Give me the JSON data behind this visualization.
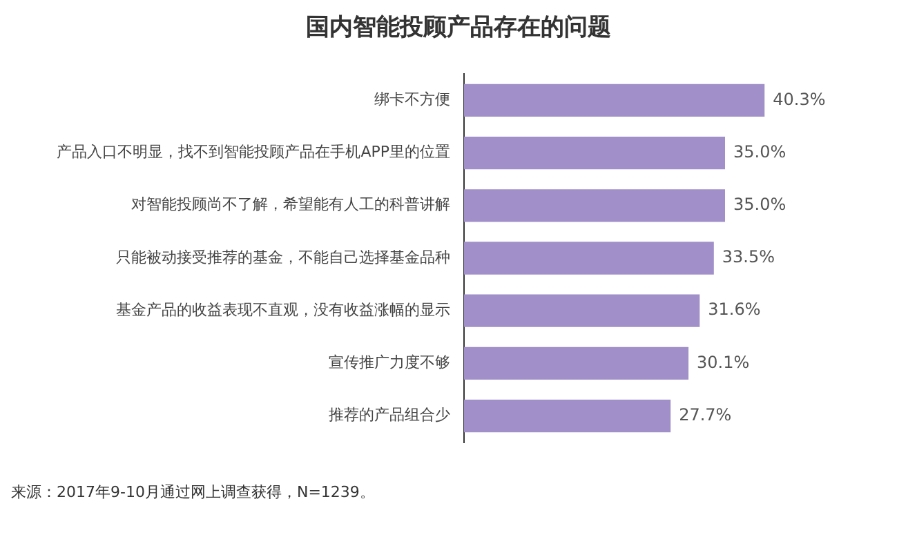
{
  "chart_data": {
    "type": "bar",
    "orientation": "horizontal",
    "title": "国内智能投顾产品存在的问题",
    "categories": [
      "绑卡不方便",
      "产品入口不明显，找不到智能投顾产品在手机APP里的位置",
      "对智能投顾尚不了解，希望能有人工的科普讲解",
      "只能被动接受推荐的基金，不能自己选择基金品种",
      "基金产品的收益表现不直观，没有收益涨幅的显示",
      "宣传推广力度不够",
      "推荐的产品组合少"
    ],
    "values": [
      40.3,
      35.0,
      35.0,
      33.5,
      31.6,
      30.1,
      27.7
    ],
    "value_labels": [
      "40.3%",
      "35.0%",
      "35.0%",
      "33.5%",
      "31.6%",
      "30.1%",
      "27.7%"
    ],
    "color": "#a08fc8",
    "grid": false,
    "legend": false,
    "tick_labels": "y",
    "annotations": [
      "来源：2017年9-10月通过网上调查获得，N=1239。"
    ]
  }
}
